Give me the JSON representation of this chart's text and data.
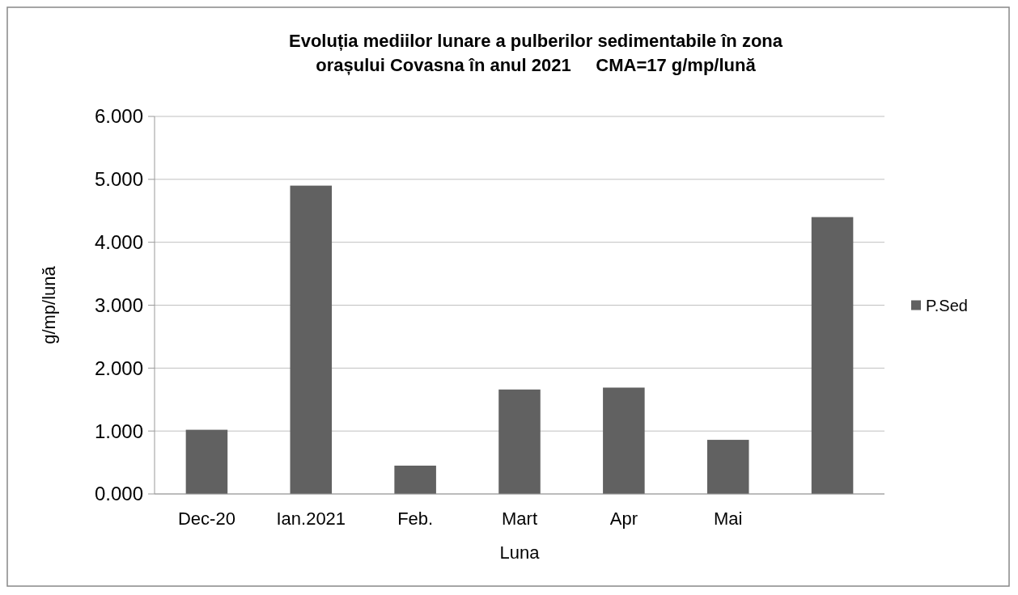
{
  "chart_data": {
    "type": "bar",
    "title": "Evoluția mediilor lunare a pulberilor sedimentabile în zona orașului Covasna în anul 2021     CMA=17 g/mp/lună",
    "xlabel": "Luna",
    "ylabel": "g/mp/lună",
    "categories": [
      "Dec-20",
      "Ian.2021",
      "Feb.",
      "Mart",
      "Apr",
      "Mai",
      null
    ],
    "series": [
      {
        "name": "P.Sed",
        "color": "#616161",
        "values": [
          1.02,
          4.9,
          0.45,
          1.66,
          1.69,
          0.86,
          4.4
        ]
      }
    ],
    "ylim": [
      0,
      6
    ],
    "yticks": [
      {
        "value": 0,
        "label": "0.000"
      },
      {
        "value": 1,
        "label": "1.000"
      },
      {
        "value": 2,
        "label": "2.000"
      },
      {
        "value": 3,
        "label": "3.000"
      },
      {
        "value": 4,
        "label": "4.000"
      },
      {
        "value": 5,
        "label": "5.000"
      },
      {
        "value": 6,
        "label": "6.000"
      }
    ],
    "grid": "y",
    "legend": "right"
  }
}
